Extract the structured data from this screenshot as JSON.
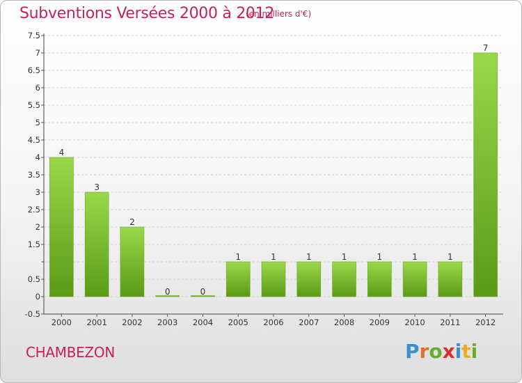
{
  "title": "Subventions Versées 2000 à 2012",
  "subtitle": "(en milliers d'€)",
  "commune": "CHAMBEZON",
  "logo": {
    "letters": [
      "P",
      "r",
      "o",
      "x",
      "i",
      "t",
      "i"
    ],
    "colors": [
      "#3a8fd0",
      "#e0702a",
      "#6aab2a",
      "#d8302a",
      "#3a8fd0",
      "#e8b020",
      "#6aab2a"
    ]
  },
  "colors": {
    "bar_light": "#9ad84a",
    "bar_dark": "#5a9a16",
    "title": "#c8205a"
  },
  "chart_data": {
    "type": "bar",
    "categories": [
      "2000",
      "2001",
      "2002",
      "2003",
      "2004",
      "2005",
      "2006",
      "2007",
      "2008",
      "2009",
      "2010",
      "2011",
      "2012"
    ],
    "values": [
      4,
      3,
      2,
      0,
      0,
      1,
      1,
      1,
      1,
      1,
      1,
      1,
      7
    ],
    "value_labels": [
      "4",
      "3",
      "2",
      "0",
      "0",
      "1",
      "1",
      "1",
      "1",
      "1",
      "1",
      "1",
      "7"
    ],
    "ylim": [
      -0.5,
      7.5
    ],
    "yticks": [
      -0.5,
      0,
      0.5,
      1,
      1.5,
      2,
      2.5,
      3,
      3.5,
      4,
      4.5,
      5,
      5.5,
      6,
      6.5,
      7,
      7.5
    ],
    "ytick_labels": [
      "-0.5",
      "0",
      "0.5",
      "",
      "1.5",
      "2",
      "2.5",
      "3",
      "3.5",
      "4",
      "4.5",
      "5",
      "5.5",
      "6",
      "6.5",
      "7",
      "7.5"
    ],
    "grid": true,
    "title": "Subventions Versées 2000 à 2012",
    "xlabel": "",
    "ylabel": ""
  }
}
